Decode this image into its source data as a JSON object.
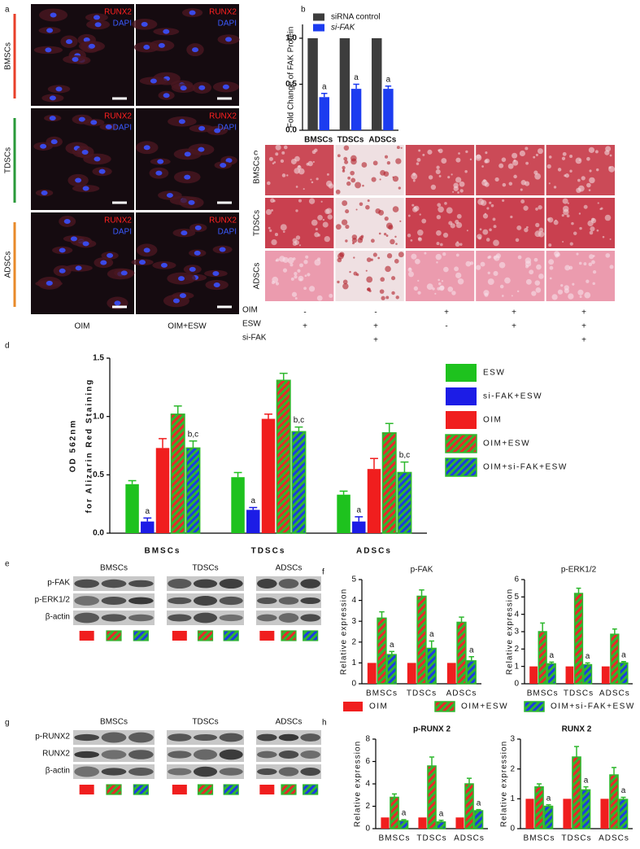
{
  "panel_labels": [
    "a",
    "b",
    "c",
    "d",
    "e",
    "f",
    "g",
    "h"
  ],
  "panel_a": {
    "rows": [
      "BMSCs",
      "TDSCs",
      "ADSCs"
    ],
    "columns": [
      "OIM",
      "OIM+ESW"
    ],
    "stain_1": "RUNX2",
    "stain_2": "DAPI"
  },
  "panel_c": {
    "rows": [
      "BMSCs",
      "TDSCs",
      "ADSCs"
    ],
    "conditions": [
      {
        "name": "OIM",
        "marks": [
          "-",
          "-",
          "+",
          "+",
          "+"
        ]
      },
      {
        "name": "ESW",
        "marks": [
          "+",
          "+",
          "-",
          "+",
          "+"
        ]
      },
      {
        "name": "si-FAK",
        "marks": [
          null,
          "+",
          null,
          null,
          "+"
        ]
      }
    ]
  },
  "panel_e": {
    "groups": [
      "BMSCs",
      "TDSCs",
      "ADSCs"
    ],
    "bands": [
      "p-FAK",
      "p-ERK1/2",
      "β-actin"
    ]
  },
  "panel_g": {
    "groups": [
      "BMSCs",
      "TDSCs",
      "ADSCs"
    ],
    "bands": [
      "p-RUNX2",
      "RUNX2",
      "β-actin"
    ]
  },
  "chart_data": [
    {
      "type": "bar",
      "ylabel": [
        "Fold Change of FAK Protein"
      ],
      "legend": "top",
      "categories": [
        "BMSCs",
        "TDSCs",
        "ADSCs"
      ],
      "series": [
        {
          "name": "siRNA control",
          "color": "#3d3d3d",
          "values": [
            1,
            1,
            1
          ]
        },
        {
          "name": "si-FAK",
          "color": "#1c3cf0",
          "values": [
            0.36,
            0.45,
            0.45
          ],
          "errors": [
            0.04,
            0.05,
            0.03
          ],
          "annotations": [
            "a",
            "a",
            "a"
          ]
        }
      ],
      "ylim": [
        0,
        1.15
      ],
      "yticks": [
        {
          "value": 0,
          "label": "0.0"
        },
        {
          "value": 0.5,
          "label": "0.5"
        },
        {
          "value": 1,
          "label": "1.0"
        }
      ]
    },
    {
      "type": "bar",
      "ylabel": [
        "OD 562nm",
        "for Alizarin Red Staining"
      ],
      "legend": "right",
      "categories": [
        "BMSCs",
        "TDSCs",
        "ADSCs"
      ],
      "series": [
        {
          "name": "ESW",
          "color": "#1ec21e",
          "values": [
            0.42,
            0.48,
            0.33
          ],
          "errors": [
            0.03,
            0.04,
            0.03
          ]
        },
        {
          "name": "si-FAK+ESW",
          "color": "#1c1ce6",
          "values": [
            0.1,
            0.2,
            0.1
          ],
          "errors": [
            0.03,
            0.02,
            0.04
          ],
          "annotations": [
            "a",
            "a",
            "a"
          ]
        },
        {
          "name": "OIM",
          "color": "#f01e1e",
          "values": [
            0.73,
            0.98,
            0.55
          ],
          "errors": [
            0.08,
            0.04,
            0.09
          ]
        },
        {
          "name": "OIM+ESW",
          "color": "#e8282a",
          "stripe": "#2eb82e",
          "values": [
            1.02,
            1.31,
            0.86
          ],
          "errors": [
            0.07,
            0.06,
            0.08
          ]
        },
        {
          "name": "OIM+si-FAK+ESW",
          "color": "#1c3ce0",
          "stripe": "#2eb82e",
          "values": [
            0.73,
            0.87,
            0.52
          ],
          "errors": [
            0.06,
            0.04,
            0.09
          ],
          "annotations": [
            "b,c",
            "b,c",
            "b,c"
          ]
        }
      ],
      "ylim": [
        0,
        1.5
      ],
      "yticks": [
        {
          "value": 0,
          "label": "0.0"
        },
        {
          "value": 0.5,
          "label": "0.5"
        },
        {
          "value": 1,
          "label": "1.0"
        },
        {
          "value": 1.5,
          "label": "1.5"
        }
      ]
    },
    {
      "type": "bar",
      "title": "p-FAK",
      "ylabel": [
        "Relative expression"
      ],
      "legend": "bottom",
      "categories": [
        "BMSCs",
        "TDSCs",
        "ADSCs"
      ],
      "series": [
        {
          "name": "OIM",
          "color": "#f01e1e",
          "values": [
            1,
            1,
            1
          ]
        },
        {
          "name": "OIM+ESW",
          "color": "#e8282a",
          "stripe": "#2eb82e",
          "values": [
            3.15,
            4.2,
            2.95
          ],
          "errors": [
            0.3,
            0.3,
            0.25
          ]
        },
        {
          "name": "OIM+si-FAK+ESW",
          "color": "#1c3ce0",
          "stripe": "#2eb82e",
          "values": [
            1.4,
            1.7,
            1.1
          ],
          "errors": [
            0.15,
            0.35,
            0.2
          ],
          "annotations": [
            "a",
            "a",
            "a"
          ]
        }
      ],
      "ylim": [
        0,
        5
      ],
      "yticks": [
        0,
        1,
        2,
        3,
        4,
        5
      ]
    },
    {
      "type": "bar",
      "title": "p-ERK1/2",
      "ylabel": [
        "Relative expression"
      ],
      "categories": [
        "BMSCs",
        "TDSCs",
        "ADSCs"
      ],
      "series": [
        {
          "color": "#f01e1e",
          "values": [
            1,
            1,
            1
          ]
        },
        {
          "color": "#e8282a",
          "stripe": "#2eb82e",
          "values": [
            3.0,
            5.2,
            2.85
          ],
          "errors": [
            0.5,
            0.3,
            0.3
          ]
        },
        {
          "color": "#1c3ce0",
          "stripe": "#2eb82e",
          "values": [
            1.15,
            1.1,
            1.2
          ],
          "errors": [
            0.1,
            0.1,
            0.08
          ],
          "annotations": [
            "a",
            "a",
            "a"
          ]
        }
      ],
      "ylim": [
        0,
        6
      ],
      "yticks": [
        0,
        1,
        2,
        3,
        4,
        5,
        6
      ]
    },
    {
      "type": "bar",
      "title": "p-RUNX 2",
      "ylabel": [
        "Relative expression"
      ],
      "categories": [
        "BMSCs",
        "TDSCs",
        "ADSCs"
      ],
      "series": [
        {
          "color": "#f01e1e",
          "values": [
            1,
            1,
            1
          ]
        },
        {
          "color": "#e8282a",
          "stripe": "#2eb82e",
          "values": [
            2.8,
            5.6,
            4.0
          ],
          "errors": [
            0.3,
            0.8,
            0.5
          ]
        },
        {
          "color": "#1c3ce0",
          "stripe": "#2eb82e",
          "values": [
            0.7,
            0.6,
            1.6
          ],
          "errors": [
            0.1,
            0.15,
            0.1
          ],
          "annotations": [
            "a",
            "a",
            "a"
          ]
        }
      ],
      "ylim": [
        0,
        8
      ],
      "yticks": [
        0,
        2,
        4,
        6,
        8
      ]
    },
    {
      "type": "bar",
      "title": "RUNX 2",
      "ylabel": [
        "Relative expression"
      ],
      "categories": [
        "BMSCs",
        "TDSCs",
        "ADSCs"
      ],
      "series": [
        {
          "color": "#f01e1e",
          "values": [
            1,
            1,
            1
          ]
        },
        {
          "color": "#e8282a",
          "stripe": "#2eb82e",
          "values": [
            1.4,
            2.4,
            1.8
          ],
          "errors": [
            0.1,
            0.35,
            0.25
          ]
        },
        {
          "color": "#1c3ce0",
          "stripe": "#2eb82e",
          "values": [
            0.75,
            1.3,
            0.98
          ],
          "errors": [
            0.05,
            0.1,
            0.07
          ],
          "annotations": [
            "a",
            "a",
            "a"
          ]
        }
      ],
      "ylim": [
        0,
        3
      ],
      "yticks": [
        0,
        1,
        2,
        3
      ]
    }
  ]
}
